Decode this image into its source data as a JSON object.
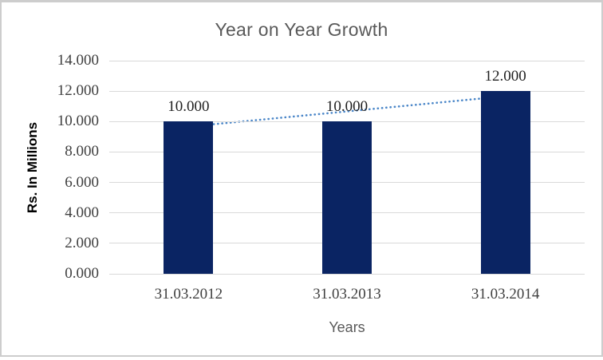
{
  "window": {
    "background": "#ffffff",
    "border_color": "#cdcdcd"
  },
  "chart": {
    "title": "Year on Year Growth",
    "y_axis_title": "Rs. In Millions",
    "x_axis_title": "Years"
  },
  "chart_data": {
    "type": "bar",
    "title": "Year on Year Growth",
    "xlabel": "Years",
    "ylabel": "Rs. In Millions",
    "categories": [
      "31.03.2012",
      "31.03.2013",
      "31.03.2014"
    ],
    "values": [
      10,
      10,
      12
    ],
    "data_labels": [
      "10.000",
      "10.000",
      "12.000"
    ],
    "y_tick_labels": [
      "0.000",
      "2.000",
      "4.000",
      "6.000",
      "8.000",
      "10.000",
      "12.000",
      "14.000"
    ],
    "ylim": [
      0,
      14
    ],
    "grid": true,
    "legend": false,
    "bar_color": "#0a2463",
    "gridline_color": "#d9d9d9",
    "trendline": {
      "type": "linear",
      "style": "dotted",
      "color": "#4a86c8",
      "start_value": 9.667,
      "end_value": 11.667
    }
  }
}
